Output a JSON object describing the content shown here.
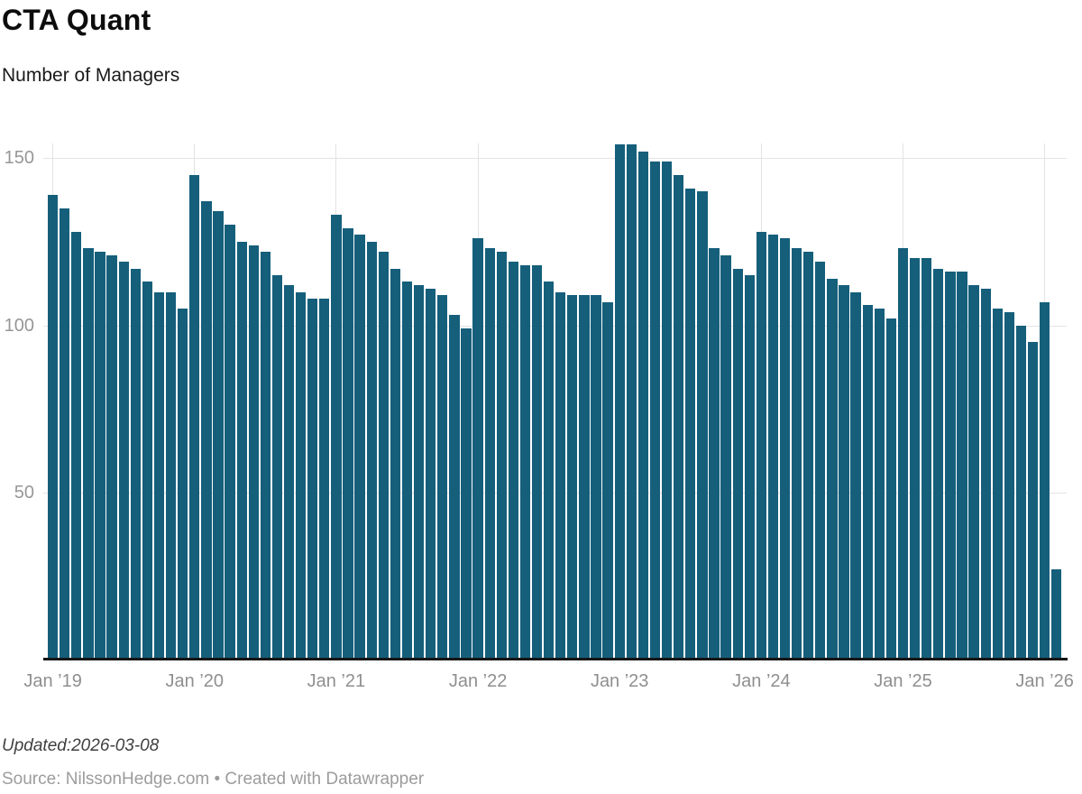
{
  "header": {
    "title": "CTA Quant",
    "subtitle": "Number of Managers"
  },
  "footer": {
    "updated": "Updated:2026-03-08",
    "source": "Source: NilssonHedge.com • Created with Datawrapper"
  },
  "colors": {
    "bar": "#155f7b",
    "gridline": "#e3e3e3",
    "axis_line": "#161616",
    "tick_label": "#949494"
  },
  "chart_data": {
    "type": "bar",
    "title": "CTA Quant",
    "ylabel": "Number of Managers",
    "xlabel": "",
    "grid": true,
    "legend": "none",
    "ylim": [
      0,
      155
    ],
    "y_ticks": [
      50,
      100,
      150
    ],
    "x_tick_labels": [
      "Jan ’19",
      "Jan ’20",
      "Jan ’21",
      "Jan ’22",
      "Jan ’23",
      "Jan ’24",
      "Jan ’25",
      "Jan ’26"
    ],
    "x_tick_indices": [
      0,
      12,
      24,
      36,
      48,
      60,
      72,
      84
    ],
    "x": [
      "2019-01",
      "2019-02",
      "2019-03",
      "2019-04",
      "2019-05",
      "2019-06",
      "2019-07",
      "2019-08",
      "2019-09",
      "2019-10",
      "2019-11",
      "2019-12",
      "2020-01",
      "2020-02",
      "2020-03",
      "2020-04",
      "2020-05",
      "2020-06",
      "2020-07",
      "2020-08",
      "2020-09",
      "2020-10",
      "2020-11",
      "2020-12",
      "2021-01",
      "2021-02",
      "2021-03",
      "2021-04",
      "2021-05",
      "2021-06",
      "2021-07",
      "2021-08",
      "2021-09",
      "2021-10",
      "2021-11",
      "2021-12",
      "2022-01",
      "2022-02",
      "2022-03",
      "2022-04",
      "2022-05",
      "2022-06",
      "2022-07",
      "2022-08",
      "2022-09",
      "2022-10",
      "2022-11",
      "2022-12",
      "2023-01",
      "2023-02",
      "2023-03",
      "2023-04",
      "2023-05",
      "2023-06",
      "2023-07",
      "2023-08",
      "2023-09",
      "2023-10",
      "2023-11",
      "2023-12",
      "2024-01",
      "2024-02",
      "2024-03",
      "2024-04",
      "2024-05",
      "2024-06",
      "2024-07",
      "2024-08",
      "2024-09",
      "2024-10",
      "2024-11",
      "2024-12",
      "2025-01",
      "2025-02",
      "2025-03",
      "2025-04",
      "2025-05",
      "2025-06",
      "2025-07",
      "2025-08",
      "2025-09",
      "2025-10",
      "2025-11",
      "2025-12",
      "2026-01",
      "2026-02"
    ],
    "values": [
      139,
      135,
      128,
      123,
      122,
      121,
      119,
      117,
      113,
      110,
      110,
      105,
      145,
      137,
      134,
      130,
      125,
      124,
      122,
      115,
      112,
      110,
      108,
      108,
      133,
      129,
      127,
      125,
      122,
      117,
      113,
      112,
      111,
      109,
      103,
      99,
      126,
      123,
      122,
      119,
      118,
      118,
      113,
      110,
      109,
      109,
      109,
      107,
      154,
      154,
      152,
      149,
      149,
      145,
      141,
      140,
      123,
      121,
      117,
      115,
      128,
      127,
      126,
      123,
      122,
      119,
      114,
      112,
      110,
      106,
      105,
      102,
      123,
      120,
      120,
      117,
      116,
      116,
      112,
      111,
      105,
      104,
      100,
      95,
      107,
      27
    ]
  }
}
